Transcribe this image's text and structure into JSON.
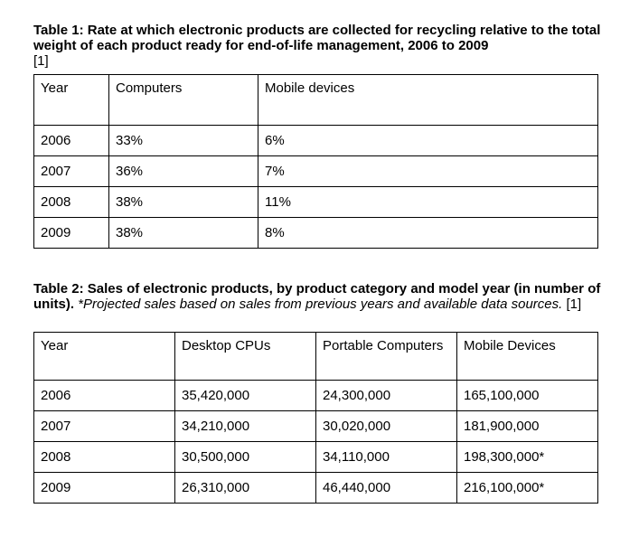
{
  "table1": {
    "caption": "Table 1: Rate at which electronic products are collected for recycling relative to the total weight of each product ready for end-of-life management, 2006 to 2009",
    "caption_ref": "[1]",
    "headers": [
      "Year",
      "Computers",
      "Mobile devices"
    ],
    "rows": [
      [
        "2006",
        "33%",
        "6%"
      ],
      [
        "2007",
        "36%",
        "7%"
      ],
      [
        "2008",
        "38%",
        "11%"
      ],
      [
        "2009",
        "38%",
        "8%"
      ]
    ]
  },
  "table2": {
    "caption_bold": "Table 2: Sales of electronic products, by product category and model year (in number of units).",
    "caption_italic": "*Projected sales based on sales from previous years and available data sources.",
    "caption_ref": "[1]",
    "headers": [
      "Year",
      "Desktop CPUs",
      "Portable Computers",
      "Mobile Devices"
    ],
    "rows": [
      [
        "2006",
        "35,420,000",
        "24,300,000",
        "165,100,000"
      ],
      [
        "2007",
        "34,210,000",
        "30,020,000",
        "181,900,000"
      ],
      [
        "2008",
        "30,500,000",
        "34,110,000",
        "198,300,000*"
      ],
      [
        "2009",
        "26,310,000",
        "46,440,000",
        "216,100,000*"
      ]
    ]
  }
}
